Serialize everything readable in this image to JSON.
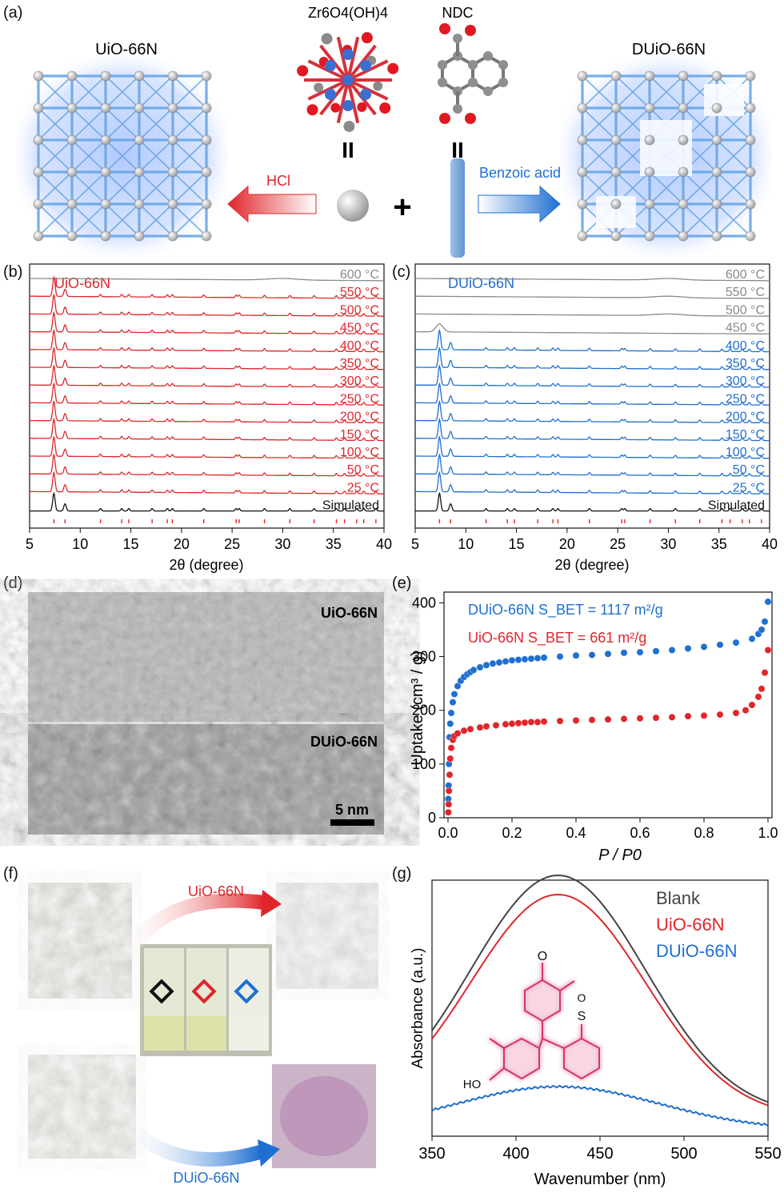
{
  "panel_labels": [
    "(a)",
    "(b)",
    "(c)",
    "(d)",
    "(e)",
    "(f)",
    "(g)"
  ],
  "colors": {
    "red": "#e0262b",
    "blue": "#1f6fd1",
    "gray": "#8a8a8a",
    "black": "#111111"
  },
  "panel_a": {
    "left_label": "UiO-66N",
    "right_label": "DUiO-66N",
    "cluster_label": "Zr6O4(OH)4",
    "linker_label": "NDC",
    "arrow_left": "HCl",
    "arrow_right": "Benzoic acid",
    "plus": "+",
    "equals": "II"
  },
  "chart_data": [
    {
      "id": "b",
      "type": "line",
      "name": "UiO-66N",
      "xlabel": "2θ (degree)",
      "xlim": [
        5,
        40
      ],
      "xticks": [
        5,
        10,
        15,
        20,
        25,
        30,
        35,
        40
      ],
      "series": [
        {
          "name": "600 °C",
          "color": "#8a8a8a",
          "crystalline": false
        },
        {
          "name": "550 °C",
          "color": "#e0262b",
          "crystalline": true
        },
        {
          "name": "500 °C",
          "color": "#e0262b",
          "crystalline": true
        },
        {
          "name": "450 °C",
          "color": "#e0262b",
          "crystalline": true
        },
        {
          "name": "400 °C",
          "color": "#e0262b",
          "crystalline": true
        },
        {
          "name": "350 °C",
          "color": "#e0262b",
          "crystalline": true
        },
        {
          "name": "300 °C",
          "color": "#e0262b",
          "crystalline": true
        },
        {
          "name": "250 °C",
          "color": "#e0262b",
          "crystalline": true
        },
        {
          "name": "200 °C",
          "color": "#e0262b",
          "crystalline": true
        },
        {
          "name": "150 °C",
          "color": "#e0262b",
          "crystalline": true
        },
        {
          "name": "100 °C",
          "color": "#e0262b",
          "crystalline": true
        },
        {
          "name": "50 °C",
          "color": "#e0262b",
          "crystalline": true
        },
        {
          "name": "25 °C",
          "color": "#e0262b",
          "crystalline": true
        },
        {
          "name": "Simulated",
          "color": "#111111",
          "crystalline": true
        }
      ],
      "peaks": [
        7.4,
        8.5,
        12.0,
        14.1,
        14.8,
        17.1,
        18.6,
        19.1,
        22.2,
        25.4,
        25.7,
        28.2,
        30.7,
        33.1,
        35.3,
        36.1,
        37.3,
        38.0,
        39.2
      ]
    },
    {
      "id": "c",
      "type": "line",
      "name": "DUiO-66N",
      "xlabel": "2θ (degree)",
      "xlim": [
        5,
        40
      ],
      "xticks": [
        5,
        10,
        15,
        20,
        25,
        30,
        35,
        40
      ],
      "series": [
        {
          "name": "600 °C",
          "color": "#8a8a8a",
          "crystalline": false
        },
        {
          "name": "550 °C",
          "color": "#8a8a8a",
          "crystalline": false
        },
        {
          "name": "500 °C",
          "color": "#8a8a8a",
          "crystalline": false
        },
        {
          "name": "450 °C",
          "color": "#8a8a8a",
          "crystalline": "weak"
        },
        {
          "name": "400 °C",
          "color": "#1f6fd1",
          "crystalline": true
        },
        {
          "name": "350 °C",
          "color": "#1f6fd1",
          "crystalline": true
        },
        {
          "name": "300 °C",
          "color": "#1f6fd1",
          "crystalline": true
        },
        {
          "name": "250 °C",
          "color": "#1f6fd1",
          "crystalline": true
        },
        {
          "name": "200 °C",
          "color": "#1f6fd1",
          "crystalline": true
        },
        {
          "name": "150 °C",
          "color": "#1f6fd1",
          "crystalline": true
        },
        {
          "name": "100 °C",
          "color": "#1f6fd1",
          "crystalline": true
        },
        {
          "name": "50 °C",
          "color": "#1f6fd1",
          "crystalline": true
        },
        {
          "name": "25 °C",
          "color": "#1f6fd1",
          "crystalline": true
        },
        {
          "name": "Simulated",
          "color": "#111111",
          "crystalline": true
        }
      ],
      "peaks": [
        7.4,
        8.5,
        12.0,
        14.1,
        14.8,
        17.1,
        18.6,
        19.1,
        22.2,
        25.4,
        25.7,
        28.2,
        30.7,
        33.1,
        35.3,
        36.1,
        37.3,
        38.0,
        39.2
      ]
    },
    {
      "id": "e",
      "type": "scatter",
      "xlabel": "P / P0",
      "ylabel": "Uptake (cm³ / g)",
      "xlim": [
        0,
        1.0
      ],
      "ylim": [
        0,
        420
      ],
      "xticks": [
        0.0,
        0.2,
        0.4,
        0.6,
        0.8,
        1.0
      ],
      "yticks": [
        0,
        100,
        200,
        300,
        400
      ],
      "series": [
        {
          "name": "DUiO-66N",
          "label": "DUiO-66N S_BET = 1117 m²/g",
          "color": "#1f6fd1",
          "x": [
            0.001,
            0.002,
            0.003,
            0.005,
            0.007,
            0.01,
            0.015,
            0.02,
            0.03,
            0.04,
            0.05,
            0.06,
            0.07,
            0.08,
            0.1,
            0.12,
            0.14,
            0.16,
            0.18,
            0.2,
            0.22,
            0.24,
            0.26,
            0.28,
            0.3,
            0.35,
            0.4,
            0.45,
            0.5,
            0.55,
            0.6,
            0.65,
            0.7,
            0.75,
            0.8,
            0.85,
            0.9,
            0.95,
            0.97,
            0.98,
            0.99,
            1.0
          ],
          "y": [
            35,
            60,
            100,
            150,
            175,
            195,
            215,
            230,
            245,
            255,
            262,
            267,
            271,
            275,
            280,
            284,
            287,
            289,
            291,
            293,
            294,
            295,
            296,
            297,
            298,
            300,
            302,
            303,
            305,
            307,
            308,
            310,
            312,
            315,
            318,
            322,
            326,
            333,
            342,
            350,
            365,
            402
          ]
        },
        {
          "name": "UiO-66N",
          "label": "UiO-66N S_BET = 661 m²/g",
          "color": "#e0262b",
          "x": [
            0.001,
            0.002,
            0.003,
            0.005,
            0.007,
            0.01,
            0.015,
            0.02,
            0.03,
            0.05,
            0.07,
            0.1,
            0.12,
            0.15,
            0.18,
            0.2,
            0.22,
            0.24,
            0.26,
            0.28,
            0.3,
            0.35,
            0.4,
            0.45,
            0.5,
            0.55,
            0.6,
            0.65,
            0.7,
            0.75,
            0.8,
            0.85,
            0.9,
            0.93,
            0.95,
            0.97,
            0.98,
            0.99,
            1.0
          ],
          "y": [
            10,
            25,
            50,
            80,
            110,
            130,
            145,
            152,
            157,
            162,
            165,
            168,
            170,
            172,
            174,
            175,
            176,
            177,
            178,
            178,
            179,
            180,
            181,
            182,
            183,
            184,
            185,
            186,
            187,
            189,
            190,
            192,
            195,
            200,
            210,
            225,
            240,
            270,
            312
          ]
        }
      ]
    },
    {
      "id": "g",
      "type": "line",
      "xlabel": "Wavenumber (nm)",
      "ylabel": "Absorbance (a.u.)",
      "xlim": [
        350,
        550
      ],
      "xticks": [
        350,
        400,
        450,
        500,
        550
      ],
      "series": [
        {
          "name": "Blank",
          "color": "#444444",
          "peak": 425,
          "amplitude": 1.0
        },
        {
          "name": "UiO-66N",
          "color": "#e0262b",
          "peak": 425,
          "amplitude": 0.93
        },
        {
          "name": "DUiO-66N",
          "color": "#1f6fd1",
          "peak": 425,
          "amplitude": 0.18
        }
      ]
    }
  ],
  "panel_d": {
    "top_label": "UiO-66N",
    "bottom_label": "DUiO-66N",
    "scale": "5 nm"
  },
  "panel_f": {
    "top_arrow": "UiO-66N",
    "bottom_arrow": "DUiO-66N"
  },
  "panel_g": {
    "molecule_labels": {
      "oxo": "O",
      "sulfonate_o": "O",
      "sulfonate_s": "S",
      "hydroxyl": "HO"
    }
  }
}
